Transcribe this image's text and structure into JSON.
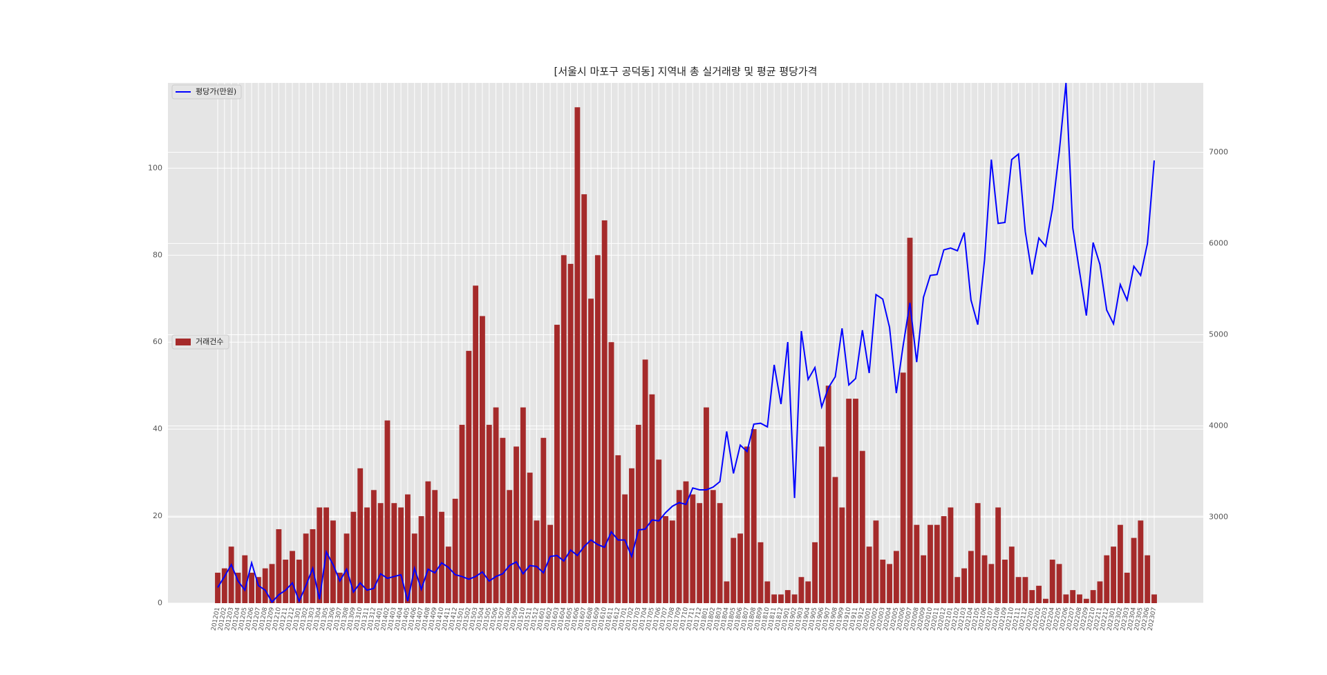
{
  "chart_data": {
    "type": "bar",
    "title": "[서울시 마포구 공덕동] 지역내 총 실거래량 및 평균 평당가격",
    "categories": [
      "201201",
      "201202",
      "201203",
      "201204",
      "201205",
      "201206",
      "201207",
      "201208",
      "201209",
      "201210",
      "201211",
      "201212",
      "201301",
      "201302",
      "201303",
      "201304",
      "201305",
      "201306",
      "201307",
      "201308",
      "201309",
      "201310",
      "201311",
      "201312",
      "201401",
      "201402",
      "201403",
      "201404",
      "201405",
      "201406",
      "201407",
      "201408",
      "201409",
      "201410",
      "201411",
      "201412",
      "201501",
      "201502",
      "201503",
      "201504",
      "201505",
      "201506",
      "201507",
      "201508",
      "201509",
      "201510",
      "201511",
      "201512",
      "201601",
      "201602",
      "201603",
      "201604",
      "201605",
      "201606",
      "201607",
      "201608",
      "201609",
      "201610",
      "201611",
      "201612",
      "201701",
      "201702",
      "201703",
      "201704",
      "201705",
      "201706",
      "201707",
      "201708",
      "201709",
      "201710",
      "201711",
      "201712",
      "201801",
      "201802",
      "201803",
      "201804",
      "201805",
      "201806",
      "201807",
      "201808",
      "201809",
      "201810",
      "201811",
      "201812",
      "201901",
      "201902",
      "201903",
      "201904",
      "201905",
      "201906",
      "201907",
      "201908",
      "201909",
      "201910",
      "201911",
      "201912",
      "202001",
      "202002",
      "202003",
      "202004",
      "202005",
      "202006",
      "202007",
      "202008",
      "202009",
      "202010",
      "202011",
      "202012",
      "202101",
      "202102",
      "202103",
      "202104",
      "202105",
      "202106",
      "202107",
      "202108",
      "202109",
      "202110",
      "202111",
      "202112",
      "202201",
      "202202",
      "202203",
      "202204",
      "202205",
      "202206",
      "202207",
      "202208",
      "202209",
      "202210",
      "202211",
      "202212",
      "202301",
      "202302",
      "202303",
      "202304",
      "202305",
      "202306",
      "202307"
    ],
    "series": [
      {
        "name": "거래건수",
        "type": "bar",
        "color": "#a52a2a",
        "values": [
          7,
          8,
          13,
          7,
          11,
          7,
          6,
          8,
          9,
          17,
          10,
          12,
          10,
          16,
          17,
          22,
          22,
          19,
          7,
          16,
          21,
          31,
          22,
          26,
          23,
          42,
          23,
          22,
          25,
          16,
          20,
          28,
          26,
          21,
          13,
          24,
          41,
          58,
          73,
          66,
          41,
          45,
          38,
          26,
          36,
          45,
          30,
          19,
          38,
          18,
          64,
          80,
          78,
          114,
          94,
          70,
          80,
          88,
          60,
          34,
          25,
          31,
          41,
          56,
          48,
          33,
          20,
          19,
          26,
          28,
          25,
          23,
          45,
          26,
          23,
          5,
          15,
          16,
          36,
          40,
          14,
          5,
          2,
          2,
          3,
          2,
          6,
          5,
          14,
          36,
          50,
          29,
          22,
          47,
          47,
          35,
          13,
          19,
          10,
          9,
          12,
          53,
          84,
          18,
          11,
          18,
          18,
          20,
          22,
          6,
          8,
          12,
          23,
          11,
          9,
          22,
          10,
          13,
          6,
          6,
          3,
          4,
          1,
          10,
          9,
          2,
          3,
          2,
          1,
          3,
          5,
          11,
          13,
          18,
          7,
          15,
          19,
          11,
          2
        ]
      },
      {
        "name": "평당가(만원)",
        "type": "line",
        "axis": "y2",
        "color": "#0000ff",
        "values": [
          2230,
          2350,
          2480,
          2300,
          2200,
          2500,
          2250,
          2200,
          2070,
          2150,
          2200,
          2280,
          2080,
          2250,
          2440,
          2100,
          2620,
          2480,
          2300,
          2430,
          2180,
          2280,
          2200,
          2220,
          2380,
          2330,
          2350,
          2370,
          2080,
          2440,
          2210,
          2430,
          2390,
          2500,
          2450,
          2370,
          2350,
          2320,
          2350,
          2400,
          2300,
          2350,
          2380,
          2470,
          2510,
          2380,
          2470,
          2460,
          2390,
          2570,
          2580,
          2520,
          2640,
          2580,
          2680,
          2750,
          2700,
          2670,
          2840,
          2750,
          2750,
          2570,
          2860,
          2870,
          2970,
          2960,
          3050,
          3120,
          3160,
          3140,
          3320,
          3300,
          3300,
          3330,
          3390,
          3940,
          3480,
          3790,
          3720,
          4020,
          4030,
          3990,
          4670,
          4240,
          4920,
          3210,
          5040,
          4510,
          4640,
          4210,
          4420,
          4540,
          5070,
          4450,
          4520,
          5050,
          4580,
          5440,
          5390,
          5080,
          4360,
          4880,
          5350,
          4700,
          5410,
          5650,
          5660,
          5930,
          5950,
          5920,
          6120,
          5380,
          5110,
          5820,
          6920,
          6220,
          6230,
          6920,
          6980,
          6130,
          5660,
          6060,
          5970,
          6380,
          7000,
          7760,
          6170,
          5690,
          5210,
          6010,
          5770,
          5270,
          5120,
          5550,
          5380,
          5750,
          5650,
          6000,
          6910
        ]
      }
    ],
    "ylim": [
      0,
      119.6
    ],
    "yticks": [
      0,
      20,
      40,
      60,
      80,
      100
    ],
    "y2lim": [
      2058,
      7760
    ],
    "y2ticks": [
      3000,
      4000,
      5000,
      6000,
      7000
    ],
    "grid": true
  }
}
